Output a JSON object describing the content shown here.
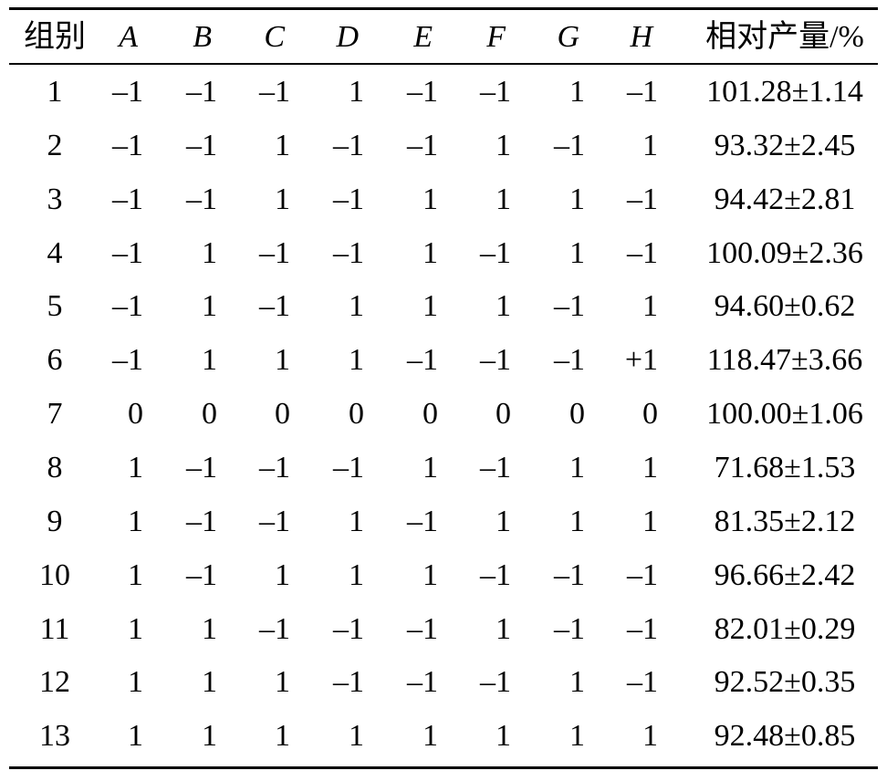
{
  "table": {
    "header": [
      "组别",
      "A",
      "B",
      "C",
      "D",
      "E",
      "F",
      "G",
      "H",
      "相对产量/%"
    ],
    "rows": [
      [
        "1",
        "–1",
        "–1",
        "–1",
        "1",
        "–1",
        "–1",
        "1",
        "–1",
        "101.28±1.14"
      ],
      [
        "2",
        "–1",
        "–1",
        "1",
        "–1",
        "–1",
        "1",
        "–1",
        "1",
        "93.32±2.45"
      ],
      [
        "3",
        "–1",
        "–1",
        "1",
        "–1",
        "1",
        "1",
        "1",
        "–1",
        "94.42±2.81"
      ],
      [
        "4",
        "–1",
        "1",
        "–1",
        "–1",
        "1",
        "–1",
        "1",
        "–1",
        "100.09±2.36"
      ],
      [
        "5",
        "–1",
        "1",
        "–1",
        "1",
        "1",
        "1",
        "–1",
        "1",
        "94.60±0.62"
      ],
      [
        "6",
        "–1",
        "1",
        "1",
        "1",
        "–1",
        "–1",
        "–1",
        "+1",
        "118.47±3.66"
      ],
      [
        "7",
        "0",
        "0",
        "0",
        "0",
        "0",
        "0",
        "0",
        "0",
        "100.00±1.06"
      ],
      [
        "8",
        "1",
        "–1",
        "–1",
        "–1",
        "1",
        "–1",
        "1",
        "1",
        "71.68±1.53"
      ],
      [
        "9",
        "1",
        "–1",
        "–1",
        "1",
        "–1",
        "1",
        "1",
        "1",
        "81.35±2.12"
      ],
      [
        "10",
        "1",
        "–1",
        "1",
        "1",
        "1",
        "–1",
        "–1",
        "–1",
        "96.66±2.42"
      ],
      [
        "11",
        "1",
        "1",
        "–1",
        "–1",
        "–1",
        "1",
        "–1",
        "–1",
        "82.01±0.29"
      ],
      [
        "12",
        "1",
        "1",
        "1",
        "–1",
        "–1",
        "–1",
        "1",
        "–1",
        "92.52±0.35"
      ],
      [
        "13",
        "1",
        "1",
        "1",
        "1",
        "1",
        "1",
        "1",
        "1",
        "92.48±0.85"
      ]
    ]
  }
}
